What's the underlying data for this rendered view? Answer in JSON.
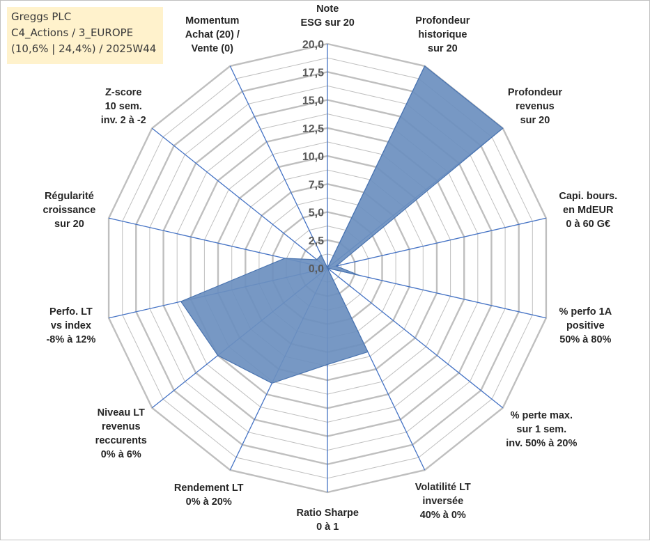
{
  "info": {
    "line1": "Greggs PLC",
    "line2": "C4_Actions / 3_EUROPE",
    "line3": "(10,6% | 24,4%) / 2025W44"
  },
  "colors": {
    "fill": "#6b8fbf",
    "stroke": "#4a74b0",
    "spoke": "#4472c4",
    "grid": "#bfbfbf",
    "infoBox": "#fff2cc"
  },
  "chart_data": {
    "type": "radar",
    "title": "",
    "rmin": 0,
    "rmax": 20,
    "major_step": 2.5,
    "tick_labels": [
      "0,0",
      "2,5",
      "5,0",
      "7,5",
      "10,0",
      "12,5",
      "15,0",
      "17,5",
      "20,0"
    ],
    "categories": [
      "Note ESG sur 20",
      "Profondeur historique sur 20",
      "Profondeur revenus sur 20",
      "Capi. bours. en MdEUR 0 à 60 G€",
      "% perfo 1A positive 50% à 80%",
      "% perte max. sur 1 sem. inv. 50% à 20%",
      "Volatilité LT inversée 40% à 0%",
      "Ratio Sharpe 0 à 1",
      "Rendement LT 0% à 20%",
      "Niveau LT revenus reccurents 0% à 6%",
      "Perfo. LT vs index -8% à 12%",
      "Régularité croissance sur 20",
      "Z-score 10 sem. inv. 2 à -2",
      "Momentum Achat (20) / Vente (0)"
    ],
    "category_lines": [
      [
        "Note",
        "ESG sur 20"
      ],
      [
        "Profondeur",
        "historique",
        "sur 20"
      ],
      [
        "Profondeur",
        "revenus",
        "sur 20"
      ],
      [
        "Capi. bours.",
        "en MdEUR",
        "0 à 60 G€"
      ],
      [
        "% perfo 1A",
        "positive",
        "50% à 80%"
      ],
      [
        "% perte max.",
        "sur 1 sem.",
        "inv. 50% à 20%"
      ],
      [
        "Volatilité LT",
        "inversée",
        "40% à 0%"
      ],
      [
        "Ratio Sharpe",
        "0 à 1"
      ],
      [
        "Rendement LT",
        "0% à 20%"
      ],
      [
        "Niveau LT",
        "revenus",
        "reccurents",
        "0% à 6%"
      ],
      [
        "Perfo. LT",
        "vs index",
        "-8% à 12%"
      ],
      [
        "Régularité",
        "croissance",
        "sur 20"
      ],
      [
        "Z-score",
        "10 sem.",
        "inv. 2 à -2"
      ],
      [
        "Momentum",
        "Achat (20) /",
        "Vente (0)"
      ]
    ],
    "series": [
      {
        "values": [
          0,
          20,
          20,
          0.8,
          2.9,
          0,
          8.3,
          8.6,
          11.4,
          12.5,
          13.4,
          3.9,
          1.2,
          1.3
        ]
      }
    ]
  }
}
